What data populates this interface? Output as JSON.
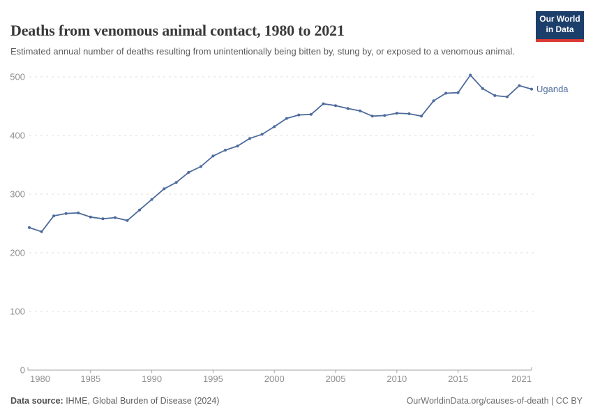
{
  "header": {
    "title": "Deaths from venomous animal contact, 1980 to 2021",
    "subtitle": "Estimated annual number of deaths resulting from unintentionally being bitten by, stung by, or exposed to a venomous animal."
  },
  "logo": {
    "line1": "Our World",
    "line2": "in Data",
    "bg_color": "#1c3e6b",
    "accent_color": "#d93a34"
  },
  "chart_data": {
    "type": "line",
    "title": "Deaths from venomous animal contact, 1980 to 2021",
    "x": [
      1980,
      1981,
      1982,
      1983,
      1984,
      1985,
      1986,
      1987,
      1988,
      1989,
      1990,
      1991,
      1992,
      1993,
      1994,
      1995,
      1996,
      1997,
      1998,
      1999,
      2000,
      2001,
      2002,
      2003,
      2004,
      2005,
      2006,
      2007,
      2008,
      2009,
      2010,
      2011,
      2012,
      2013,
      2014,
      2015,
      2016,
      2017,
      2018,
      2019,
      2020,
      2021
    ],
    "series": [
      {
        "name": "Uganda",
        "color": "#4c6a9c",
        "values": [
          243,
          236,
          263,
          267,
          268,
          261,
          258,
          260,
          255,
          273,
          291,
          309,
          320,
          337,
          347,
          365,
          375,
          382,
          395,
          402,
          415,
          429,
          435,
          436,
          454,
          451,
          446,
          442,
          433,
          434,
          438,
          437,
          433,
          459,
          472,
          473,
          503,
          480,
          468,
          466,
          485,
          479
        ]
      }
    ],
    "xlabel": "",
    "ylabel": "",
    "ylim": [
      0,
      500
    ],
    "yticks": [
      0,
      100,
      200,
      300,
      400,
      500
    ],
    "xticks": [
      1980,
      1985,
      1990,
      1995,
      2000,
      2005,
      2010,
      2015,
      2021
    ],
    "grid": true,
    "grid_style": "dashed",
    "legend_position": "end-of-line label",
    "colors": {
      "grid": "#dcdcdc",
      "axis": "#a3a3a3",
      "tick_label": "#8f8f8f"
    }
  },
  "footer": {
    "source_label": "Data source:",
    "source_text": " IHME, Global Burden of Disease (2024)",
    "credit": "OurWorldinData.org/causes-of-death | CC BY"
  }
}
